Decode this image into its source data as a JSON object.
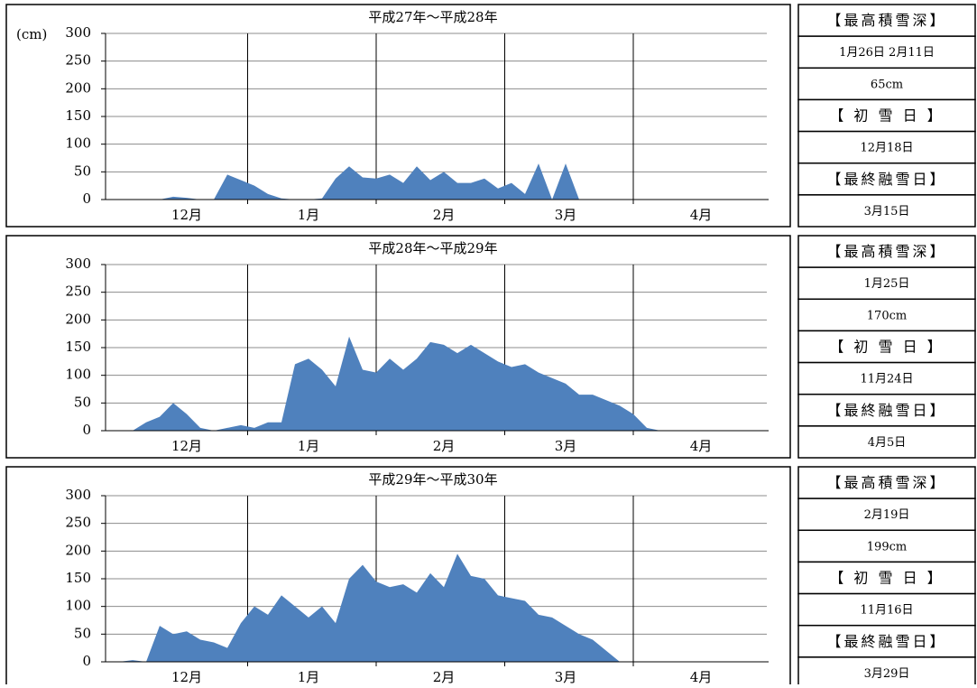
{
  "chart_data": [
    {
      "type": "area",
      "title": "平成27年～平成28年",
      "y_label": "(cm)",
      "color": "#4f81bd",
      "categories": [
        null,
        null,
        null,
        null,
        null,
        null,
        "12月",
        null,
        null,
        null,
        null,
        null,
        null,
        null,
        null,
        "1月",
        null,
        null,
        null,
        null,
        null,
        null,
        null,
        null,
        null,
        "2月",
        null,
        null,
        null,
        null,
        null,
        null,
        null,
        null,
        "3月",
        null,
        null,
        null,
        null,
        null,
        null,
        null,
        null,
        null,
        "4月",
        null,
        null,
        null,
        null,
        null
      ],
      "values": [
        0,
        0,
        0,
        0,
        0,
        5,
        3,
        0,
        0,
        45,
        35,
        25,
        10,
        2,
        0,
        0,
        2,
        38,
        60,
        40,
        38,
        45,
        30,
        60,
        35,
        50,
        30,
        30,
        38,
        20,
        30,
        10,
        65,
        0,
        65,
        0,
        0,
        0,
        0,
        0,
        0,
        0,
        0,
        0,
        0,
        0,
        0,
        0,
        0,
        0
      ],
      "ylim": [
        0,
        300
      ],
      "yticks": [
        0,
        50,
        100,
        150,
        200,
        250,
        300
      ],
      "grid": true,
      "panel": [
        "【最高積雪深】",
        "1月26日 2月11日",
        "65cm",
        "【 初 雪 日 】",
        "12月18日",
        "【最終融雪日】",
        "3月15日"
      ]
    },
    {
      "type": "area",
      "title": "平成28年～平成29年",
      "color": "#4f81bd",
      "categories": [
        null,
        null,
        null,
        null,
        null,
        null,
        "12月",
        null,
        null,
        null,
        null,
        null,
        null,
        null,
        null,
        "1月",
        null,
        null,
        null,
        null,
        null,
        null,
        null,
        null,
        null,
        "2月",
        null,
        null,
        null,
        null,
        null,
        null,
        null,
        null,
        "3月",
        null,
        null,
        null,
        null,
        null,
        null,
        null,
        null,
        null,
        "4月",
        null,
        null,
        null,
        null,
        null
      ],
      "values": [
        0,
        0,
        0,
        15,
        25,
        50,
        30,
        5,
        0,
        5,
        10,
        5,
        15,
        15,
        120,
        130,
        110,
        80,
        170,
        110,
        105,
        130,
        110,
        130,
        160,
        155,
        140,
        155,
        140,
        125,
        115,
        120,
        105,
        95,
        85,
        65,
        65,
        55,
        45,
        30,
        5,
        0,
        0,
        0,
        0,
        0,
        0,
        0,
        0,
        0
      ],
      "ylim": [
        0,
        300
      ],
      "yticks": [
        0,
        50,
        100,
        150,
        200,
        250,
        300
      ],
      "grid": true,
      "panel": [
        "【最高積雪深】",
        "1月25日",
        "170cm",
        "【 初 雪 日 】",
        "11月24日",
        "【最終融雪日】",
        "4月5日"
      ]
    },
    {
      "type": "area",
      "title": "平成29年～平成30年",
      "color": "#4f81bd",
      "categories": [
        null,
        null,
        null,
        null,
        null,
        null,
        "12月",
        null,
        null,
        null,
        null,
        null,
        null,
        null,
        null,
        "1月",
        null,
        null,
        null,
        null,
        null,
        null,
        null,
        null,
        null,
        "2月",
        null,
        null,
        null,
        null,
        null,
        null,
        null,
        null,
        "3月",
        null,
        null,
        null,
        null,
        null,
        null,
        null,
        null,
        null,
        "4月",
        null,
        null,
        null,
        null,
        null
      ],
      "values": [
        0,
        0,
        3,
        0,
        65,
        50,
        55,
        40,
        35,
        25,
        70,
        100,
        85,
        120,
        100,
        80,
        100,
        70,
        150,
        175,
        145,
        135,
        140,
        125,
        160,
        135,
        195,
        155,
        150,
        120,
        115,
        110,
        85,
        80,
        65,
        50,
        40,
        20,
        0,
        0,
        0,
        0,
        0,
        0,
        0,
        0,
        0,
        0,
        0,
        0
      ],
      "ylim": [
        0,
        300
      ],
      "yticks": [
        0,
        50,
        100,
        150,
        200,
        250,
        300
      ],
      "grid": true,
      "panel": [
        "【最高積雪深】",
        "2月19日",
        "199cm",
        "【 初 雪 日 】",
        "11月16日",
        "【最終融雪日】",
        "3月29日"
      ]
    }
  ]
}
